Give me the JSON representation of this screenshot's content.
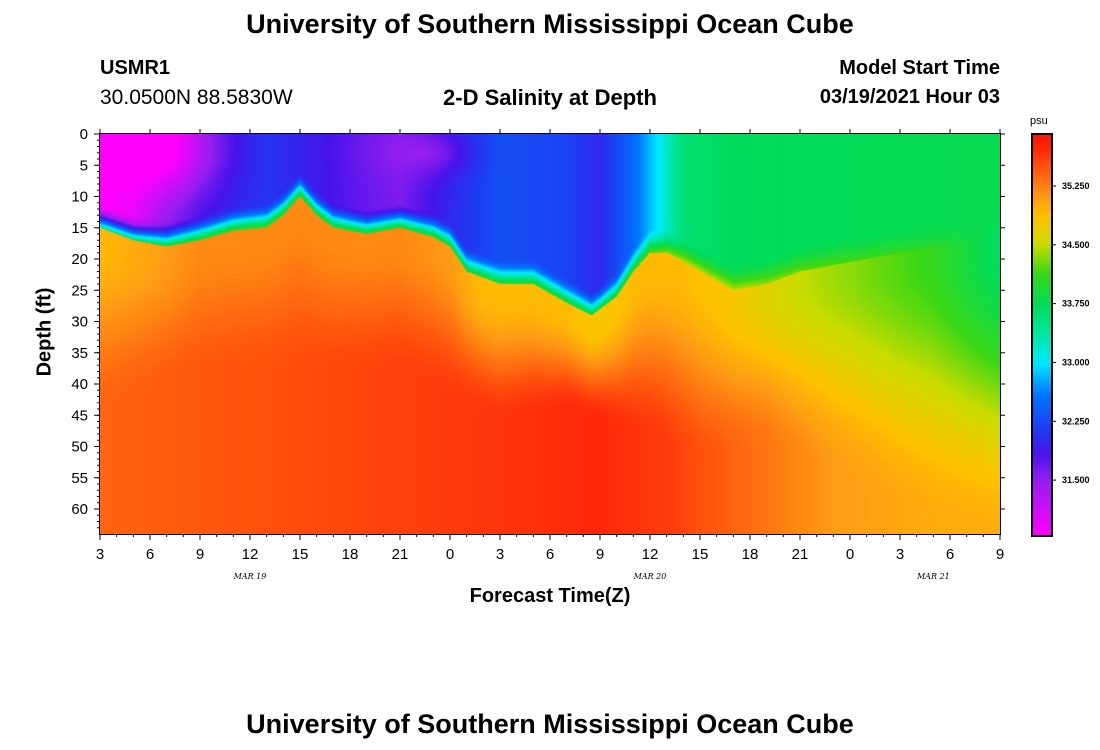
{
  "chart_data": {
    "type": "heatmap",
    "title": "University of Southern Mississippi Ocean Cube",
    "footer_title": "University of Southern Mississippi Ocean Cube",
    "station_id": "USMR1",
    "station_coords": "30.0500N 88.5830W",
    "subtitle": "2-D Salinity at Depth",
    "model_start_label": "Model Start Time",
    "model_start_value": "03/19/2021 Hour 03",
    "xlabel": "Forecast Time(Z)",
    "ylabel": "Depth (ft)",
    "units": "psu",
    "x_ticks": [
      "3",
      "6",
      "9",
      "12",
      "15",
      "18",
      "21",
      "0",
      "3",
      "6",
      "9",
      "12",
      "15",
      "18",
      "21",
      "0",
      "3",
      "6",
      "9"
    ],
    "date_labels": [
      "MAR 19",
      "MAR 20",
      "MAR 21"
    ],
    "y_ticks": [
      "0",
      "5",
      "10",
      "15",
      "20",
      "25",
      "30",
      "35",
      "40",
      "45",
      "50",
      "55",
      "60"
    ],
    "ylim": [
      0,
      64
    ],
    "colorbar_ticks": [
      "35.250",
      "34.500",
      "33.750",
      "33.000",
      "32.250",
      "31.500"
    ],
    "colorbar_range": [
      30.8,
      35.9
    ],
    "x_hours": [
      0,
      54
    ],
    "halocline_depth_ft": [
      [
        0,
        15
      ],
      [
        2,
        17
      ],
      [
        4,
        18
      ],
      [
        6,
        17
      ],
      [
        8,
        15.5
      ],
      [
        10,
        15
      ],
      [
        11,
        13
      ],
      [
        12,
        10
      ],
      [
        13,
        13
      ],
      [
        14,
        15
      ],
      [
        16,
        16
      ],
      [
        18,
        15
      ],
      [
        20,
        16.5
      ],
      [
        21,
        18
      ],
      [
        22,
        22
      ],
      [
        24,
        24
      ],
      [
        26,
        24
      ],
      [
        28,
        27
      ],
      [
        29.5,
        29
      ],
      [
        31,
        26
      ],
      [
        32,
        22
      ],
      [
        33,
        19
      ],
      [
        34,
        19
      ],
      [
        36,
        22
      ],
      [
        38,
        25
      ],
      [
        40,
        24
      ],
      [
        42,
        22
      ],
      [
        44,
        21
      ],
      [
        46,
        20
      ],
      [
        48,
        19
      ],
      [
        50,
        18
      ],
      [
        52,
        17
      ],
      [
        54,
        16
      ]
    ],
    "surface_salinity_psu": [
      [
        0,
        30.8
      ],
      [
        2,
        31.0
      ],
      [
        4,
        31.6
      ],
      [
        6,
        31.9
      ],
      [
        10,
        32.1
      ],
      [
        13,
        31.9
      ],
      [
        16,
        31.7
      ],
      [
        18,
        31.6
      ],
      [
        21,
        32.0
      ],
      [
        24,
        32.3
      ],
      [
        28,
        32.2
      ],
      [
        30,
        32.0
      ],
      [
        32,
        32.5
      ],
      [
        33.5,
        33.0
      ],
      [
        35,
        33.6
      ],
      [
        38,
        33.75
      ],
      [
        54,
        33.8
      ]
    ],
    "mid_salinity_psu": [
      [
        0,
        34.9
      ],
      [
        6,
        35.2
      ],
      [
        12,
        35.2
      ],
      [
        18,
        35.2
      ],
      [
        21,
        35.1
      ],
      [
        23,
        34.9
      ],
      [
        26,
        34.9
      ],
      [
        28,
        34.9
      ],
      [
        30,
        34.8
      ],
      [
        32,
        34.9
      ],
      [
        35,
        34.9
      ],
      [
        38,
        34.8
      ],
      [
        42,
        34.5
      ],
      [
        46,
        34.3
      ],
      [
        50,
        34.1
      ],
      [
        54,
        33.7
      ]
    ],
    "bottom_salinity_psu": [
      [
        0,
        35.4
      ],
      [
        10,
        35.5
      ],
      [
        20,
        35.6
      ],
      [
        30,
        35.7
      ],
      [
        34,
        35.6
      ],
      [
        38,
        35.4
      ],
      [
        44,
        35.1
      ],
      [
        50,
        35.0
      ],
      [
        54,
        35.0
      ]
    ],
    "deep_surface_ft": [
      [
        0,
        36
      ],
      [
        6,
        30
      ],
      [
        12,
        30
      ],
      [
        18,
        30
      ],
      [
        24,
        38
      ],
      [
        28,
        36
      ],
      [
        32,
        40
      ],
      [
        36,
        44
      ],
      [
        40,
        42
      ],
      [
        44,
        46
      ],
      [
        48,
        52
      ],
      [
        54,
        58
      ]
    ],
    "low_pockets": [
      {
        "hour": 3,
        "depth_ft": 2,
        "radius_hours": 4,
        "radius_ft": 9,
        "psu": 30.6
      },
      {
        "hour": 19,
        "depth_ft": 3,
        "radius_hours": 3,
        "radius_ft": 4,
        "psu": 31.5
      }
    ]
  }
}
